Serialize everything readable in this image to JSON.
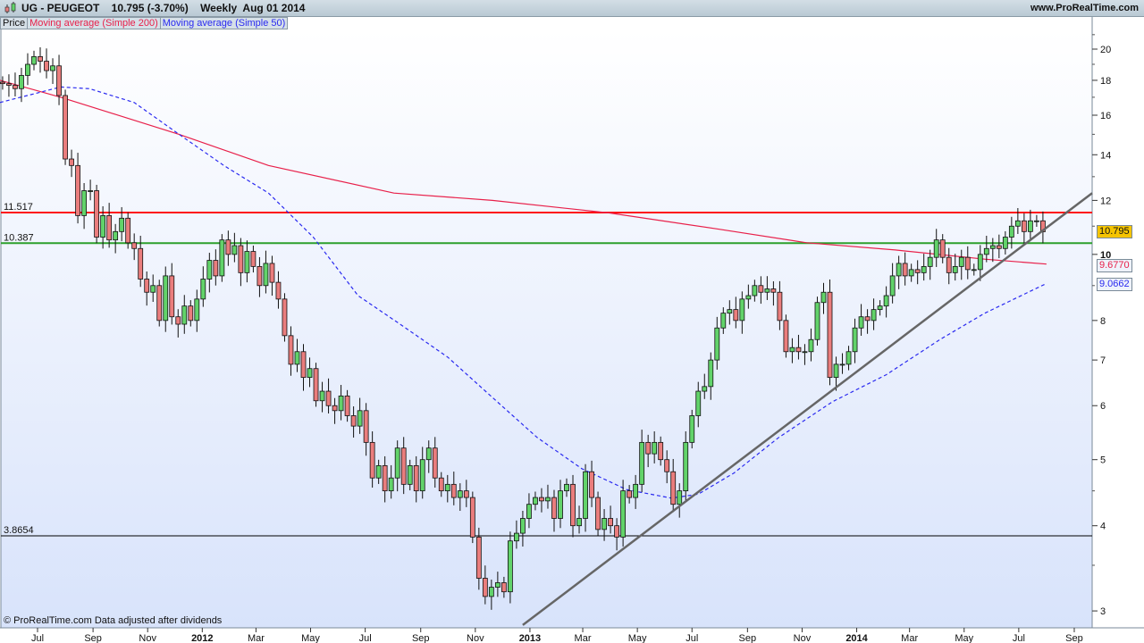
{
  "header": {
    "title": "UG - PEUGEOT    10.795 (-3.70%)    Weekly  Aug 01 2014",
    "website": "www.ProRealTime.com"
  },
  "legend": {
    "price": "Price",
    "sma200": "Moving average (Simple 200)",
    "sma50": "Moving average (Simple 50)"
  },
  "footer": "© ProRealTime.com  Data adjusted after dividends",
  "colors": {
    "up": "#62d36a",
    "down": "#ea7d7d",
    "sma200": "#e8204a",
    "sma50": "#2a2af0",
    "resistance": "#ff1010",
    "support": "#2ca02c",
    "trendline": "#666666",
    "gold": "#f5c400"
  },
  "chart_data": {
    "type": "candlestick",
    "period": "Weekly",
    "last_date": "2014-08-01",
    "y_scale": "log",
    "ylim": [
      2.85,
      22
    ],
    "y_ticks": [
      3,
      4,
      5,
      6,
      7,
      8,
      10,
      12,
      14,
      16,
      18,
      20
    ],
    "x_ticks": [
      {
        "label": "Jul",
        "date": "2011-07-01"
      },
      {
        "label": "Sep",
        "date": "2011-09-01"
      },
      {
        "label": "Nov",
        "date": "2011-11-01"
      },
      {
        "label": "2012",
        "date": "2012-01-01",
        "bold": true
      },
      {
        "label": "Mar",
        "date": "2012-03-01"
      },
      {
        "label": "May",
        "date": "2012-05-01"
      },
      {
        "label": "Jul",
        "date": "2012-07-01"
      },
      {
        "label": "Sep",
        "date": "2012-09-01"
      },
      {
        "label": "Nov",
        "date": "2012-11-01"
      },
      {
        "label": "2013",
        "date": "2013-01-01",
        "bold": true
      },
      {
        "label": "Mar",
        "date": "2013-03-01"
      },
      {
        "label": "May",
        "date": "2013-05-01"
      },
      {
        "label": "Jul",
        "date": "2013-07-01"
      },
      {
        "label": "Sep",
        "date": "2013-09-01"
      },
      {
        "label": "Nov",
        "date": "2013-11-01"
      },
      {
        "label": "2014",
        "date": "2014-01-01",
        "bold": true
      },
      {
        "label": "Mar",
        "date": "2014-03-01"
      },
      {
        "label": "May",
        "date": "2014-05-01"
      },
      {
        "label": "Jul",
        "date": "2014-07-01"
      },
      {
        "label": "Sep",
        "date": "2014-09-01"
      }
    ],
    "closes": [
      17.8,
      17.7,
      17.5,
      18.3,
      19.0,
      19.5,
      19.2,
      18.6,
      18.9,
      17.1,
      13.8,
      13.5,
      11.4,
      12.4,
      12.4,
      10.6,
      11.4,
      10.5,
      10.8,
      11.3,
      10.4,
      10.2,
      9.2,
      8.8,
      9.0,
      8.0,
      9.3,
      8.1,
      7.9,
      8.4,
      8.0,
      8.6,
      9.2,
      9.8,
      9.3,
      10.5,
      10.0,
      10.3,
      9.4,
      10.1,
      9.6,
      9.0,
      9.7,
      9.1,
      8.6,
      7.6,
      6.9,
      7.2,
      6.6,
      6.8,
      6.1,
      6.3,
      6.0,
      5.9,
      6.2,
      5.8,
      5.6,
      5.9,
      5.3,
      4.7,
      4.9,
      4.5,
      4.7,
      5.2,
      4.6,
      4.9,
      4.5,
      5.0,
      5.2,
      4.7,
      4.5,
      4.6,
      4.4,
      4.5,
      4.4,
      3.85,
      3.35,
      3.15,
      3.25,
      3.3,
      3.2,
      3.8,
      3.9,
      4.1,
      4.3,
      4.4,
      4.35,
      4.4,
      4.1,
      4.5,
      4.6,
      4.0,
      4.1,
      4.8,
      4.4,
      3.95,
      4.1,
      4.0,
      3.85,
      4.5,
      4.4,
      4.6,
      5.3,
      5.1,
      5.3,
      5.0,
      4.8,
      4.3,
      4.5,
      5.3,
      5.8,
      6.3,
      6.4,
      7.0,
      7.8,
      8.2,
      8.3,
      8.0,
      8.6,
      8.7,
      9.0,
      8.8,
      8.9,
      8.8,
      8.0,
      7.2,
      7.3,
      7.2,
      7.2,
      7.5,
      8.5,
      8.8,
      6.6,
      6.9,
      6.9,
      7.2,
      7.8,
      8.1,
      8.0,
      8.3,
      8.4,
      8.7,
      9.3,
      9.7,
      9.3,
      9.5,
      9.4,
      9.6,
      9.9,
      10.5,
      9.9,
      9.4,
      9.6,
      9.9,
      9.5,
      9.5,
      10.0,
      10.2,
      10.3,
      10.2,
      10.6,
      11.0,
      11.2,
      10.8,
      11.2,
      11.2,
      10.795
    ],
    "last_close": "10.795",
    "sma200": {
      "last": "9.6770",
      "points": [
        [
          "2011-05-20",
          18.0
        ],
        [
          "2011-07-27",
          17.0
        ],
        [
          "2011-12-06",
          15.0
        ],
        [
          "2012-03-15",
          13.5
        ],
        [
          "2012-08-02",
          12.3
        ],
        [
          "2012-11-20",
          12.0
        ],
        [
          "2013-03-31",
          11.5
        ],
        [
          "2013-07-29",
          10.9
        ],
        [
          "2013-11-06",
          10.4
        ],
        [
          "2014-02-13",
          10.15
        ],
        [
          "2014-05-24",
          9.84
        ],
        [
          "2014-08-01",
          9.677
        ]
      ]
    },
    "sma50": {
      "last": "9.0662",
      "points": [
        [
          "2011-05-20",
          16.7
        ],
        [
          "2011-07-27",
          17.6
        ],
        [
          "2011-08-28",
          17.5
        ],
        [
          "2011-10-17",
          16.7
        ],
        [
          "2011-12-06",
          15.0
        ],
        [
          "2012-01-25",
          13.5
        ],
        [
          "2012-03-15",
          12.3
        ],
        [
          "2012-05-04",
          10.6
        ],
        [
          "2012-06-23",
          8.7
        ],
        [
          "2012-08-12",
          7.85
        ],
        [
          "2012-10-01",
          7.07
        ],
        [
          "2012-11-20",
          6.17
        ],
        [
          "2013-01-09",
          5.39
        ],
        [
          "2013-02-28",
          4.85
        ],
        [
          "2013-04-19",
          4.52
        ],
        [
          "2013-06-08",
          4.39
        ],
        [
          "2013-07-08",
          4.45
        ],
        [
          "2013-08-17",
          4.78
        ],
        [
          "2013-10-06",
          5.39
        ],
        [
          "2013-12-05",
          6.08
        ],
        [
          "2014-02-03",
          6.66
        ],
        [
          "2014-04-04",
          7.5
        ],
        [
          "2014-05-24",
          8.2
        ],
        [
          "2014-08-01",
          9.066
        ]
      ]
    },
    "levels": [
      {
        "value": 11.517,
        "label": "11.517",
        "color": "#ff1010"
      },
      {
        "value": 10.387,
        "label": "10.387",
        "color": "#2ca02c"
      },
      {
        "value": 3.8654,
        "label": "3.8654",
        "color": "#000000"
      }
    ],
    "trendline": [
      [
        "2012-12-24",
        2.86
      ],
      [
        "2014-09-21",
        12.3
      ]
    ]
  }
}
